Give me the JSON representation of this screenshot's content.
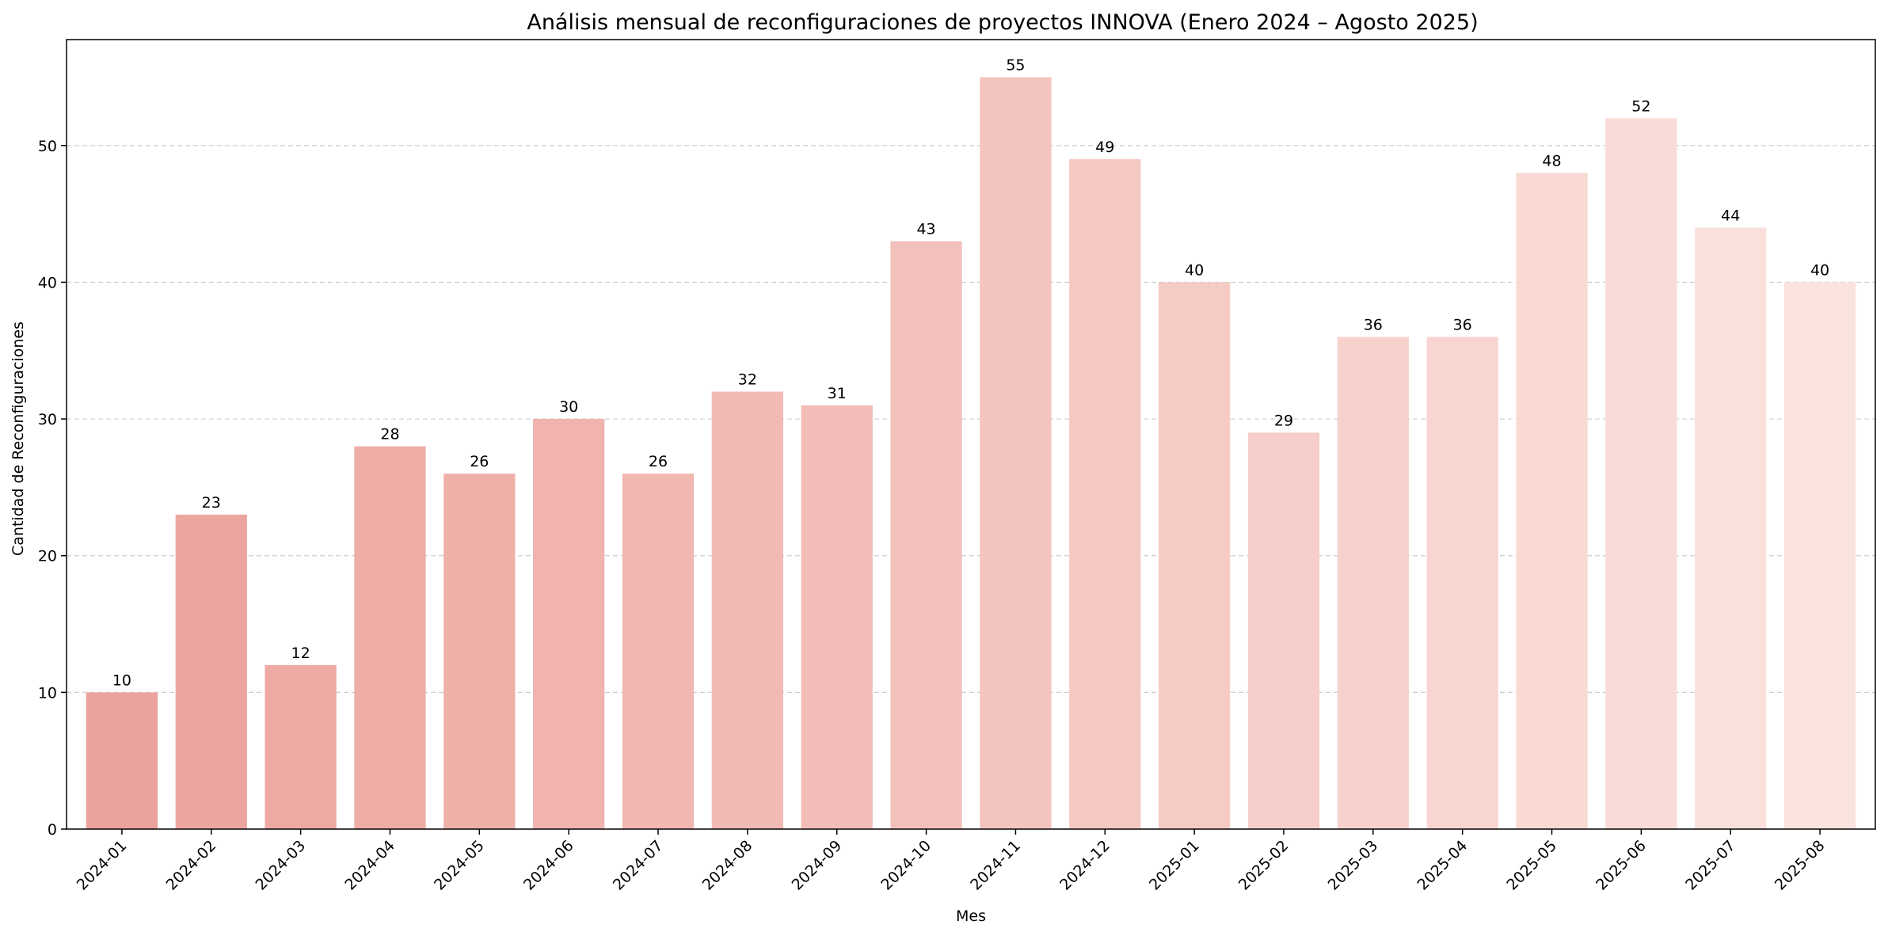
{
  "chart_data": {
    "type": "bar",
    "title": "Análisis mensual de reconfiguraciones de proyectos INNOVA (Enero 2024 – Agosto 2025)",
    "xlabel": "Mes",
    "ylabel": "Cantidad de Reconfiguraciones",
    "categories": [
      "2024-01",
      "2024-02",
      "2024-03",
      "2024-04",
      "2024-05",
      "2024-06",
      "2024-07",
      "2024-08",
      "2024-09",
      "2024-10",
      "2024-11",
      "2024-12",
      "2025-01",
      "2025-02",
      "2025-03",
      "2025-04",
      "2025-05",
      "2025-06",
      "2025-07",
      "2025-08"
    ],
    "values": [
      10,
      23,
      12,
      28,
      26,
      30,
      26,
      32,
      31,
      43,
      55,
      49,
      40,
      29,
      36,
      36,
      48,
      52,
      44,
      40
    ],
    "value_labels": [
      "10",
      "23",
      "12",
      "28",
      "26",
      "30",
      "26",
      "32",
      "31",
      "43",
      "55",
      "49",
      "40",
      "29",
      "36",
      "36",
      "48",
      "52",
      "44",
      "40"
    ],
    "ylim": [
      0,
      57.75
    ],
    "yticks": [
      "0",
      "10",
      "20",
      "30",
      "40",
      "50"
    ],
    "grid": "y-dashed",
    "legend": "none",
    "bar_colors": {
      "start": "#eca29c",
      "end": "#fbe3df"
    },
    "grid_color": "#cccccc",
    "axis_color": "#000000"
  }
}
